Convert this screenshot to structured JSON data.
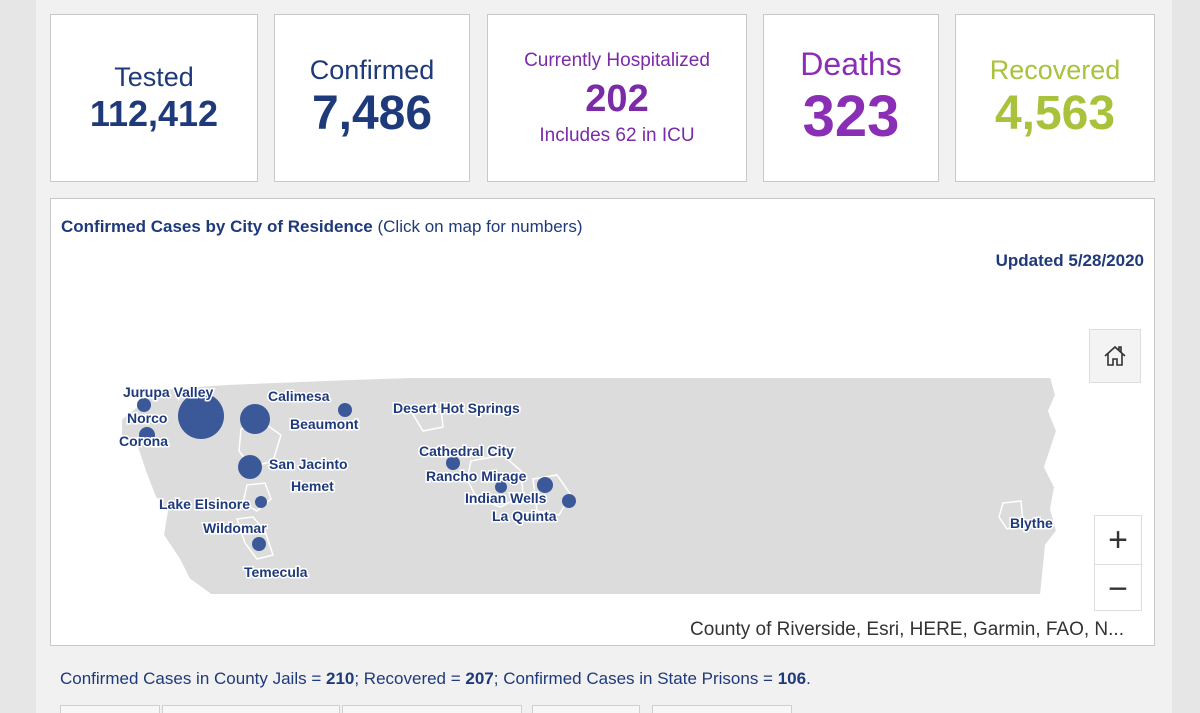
{
  "cards": {
    "tested": {
      "label": "Tested",
      "value": "112,412"
    },
    "confirmed": {
      "label": "Confirmed",
      "value": "7,486"
    },
    "hospitalized": {
      "label": "Currently Hospitalized",
      "value": "202",
      "sub": "Includes 62 in ICU"
    },
    "deaths": {
      "label": "Deaths",
      "value": "323"
    },
    "recovered": {
      "label": "Recovered",
      "value": "4,563"
    }
  },
  "map": {
    "title_bold": "Confirmed Cases by City of Residence",
    "title_rest": " (Click on map for numbers)",
    "updated": "Updated 5/28/2020",
    "attribution": "County of Riverside, Esri, HERE, Garmin, FAO, N...",
    "zoom_in": "+",
    "zoom_out": "−",
    "home_icon": "home-icon",
    "cities": [
      "Jurupa Valley",
      "Norco",
      "Corona",
      "Calimesa",
      "Beaumont",
      "San Jacinto",
      "Hemet",
      "Lake Elsinore",
      "Wildomar",
      "Temecula",
      "Desert Hot Springs",
      "Cathedral City",
      "Rancho Mirage",
      "Indian Wells",
      "La Quinta",
      "Blythe"
    ]
  },
  "footer": {
    "t1": "Confirmed Cases in County Jails = ",
    "v1": "210",
    "t2": "; Recovered = ",
    "v2": "207",
    "t3": "; Confirmed Cases in State Prisons = ",
    "v3": "106",
    "t4": "."
  },
  "colors": {
    "primary": "#1f3a7a",
    "hospital": "#7b2aa8",
    "deaths": "#8a2fb5",
    "recovered": "#a9c23b",
    "bubble": "#3b5998"
  }
}
